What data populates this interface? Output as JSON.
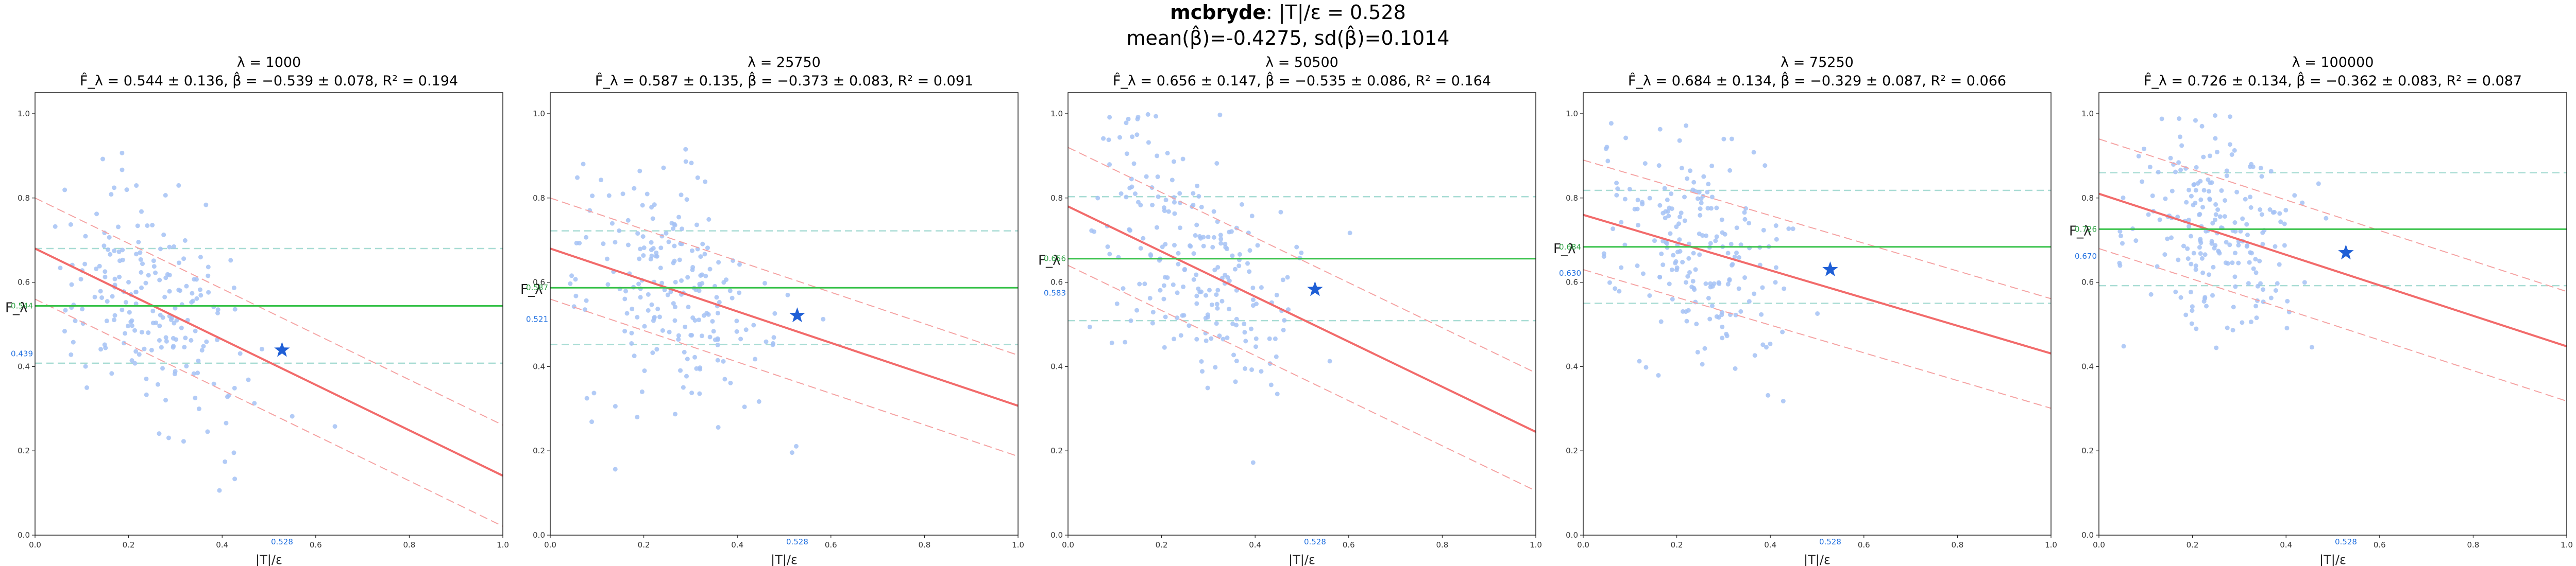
{
  "suptitle": {
    "name": "mcbryde",
    "rest": ": |T|/ε = 0.528",
    "line2": "mean(β̂)=-0.4275, sd(β̂)=0.1014"
  },
  "colors": {
    "points": "#a4c2f4",
    "fit_line": "#f26b6b",
    "band": "#f5a3a3",
    "hline": "#38c24a",
    "hband": "#a8dcd4",
    "star": "#1f5fd6",
    "x_annot": "#1f6fe0",
    "y_annot_green": "#2ea043",
    "y_annot_blue": "#1f6fe0"
  },
  "chart_data": [
    {
      "type": "scatter",
      "title_line1": "λ = 1000",
      "title_line2": "F̂_λ = 0.544 ± 0.136, β̂ = −0.539 ± 0.078, R² = 0.194",
      "xlabel": "|T|/ε",
      "ylabel": "F_λ",
      "xlim": [
        0,
        1
      ],
      "ylim": [
        0,
        1.05
      ],
      "xticks": [
        "0.0",
        "0.2",
        "0.4",
        "0.6",
        "0.8",
        "1.0"
      ],
      "yticks": [
        "0.0",
        "0.2",
        "0.4",
        "0.6",
        "0.8",
        "1.0"
      ],
      "x_annotation": "0.528",
      "y_annotations": [
        {
          "text": "0.544",
          "color": "green"
        },
        {
          "text": "0.439",
          "color": "blue"
        }
      ],
      "fit": {
        "intercept": 0.68,
        "slope": -0.539,
        "band": 0.12
      },
      "hline": 0.544,
      "hband": [
        0.408,
        0.68
      ],
      "star": {
        "x": 0.528,
        "y": 0.439
      },
      "cloud": {
        "cx": 0.25,
        "cy": 0.55,
        "sx": 0.11,
        "sy": 0.13,
        "n": 200,
        "seed": 11
      }
    },
    {
      "type": "scatter",
      "title_line1": "λ = 25750",
      "title_line2": "F̂_λ = 0.587 ± 0.135, β̂ = −0.373 ± 0.083, R² = 0.091",
      "xlabel": "|T|/ε",
      "ylabel": "F_λ",
      "xlim": [
        0,
        1
      ],
      "ylim": [
        0,
        1.05
      ],
      "xticks": [
        "0.0",
        "0.2",
        "0.4",
        "0.6",
        "0.8",
        "1.0"
      ],
      "yticks": [
        "0.0",
        "0.2",
        "0.4",
        "0.6",
        "0.8",
        "1.0"
      ],
      "x_annotation": "0.528",
      "y_annotations": [
        {
          "text": "0.587",
          "color": "green"
        },
        {
          "text": "0.521",
          "color": "blue"
        }
      ],
      "fit": {
        "intercept": 0.68,
        "slope": -0.373,
        "band": 0.12
      },
      "hline": 0.587,
      "hband": [
        0.452,
        0.722
      ],
      "star": {
        "x": 0.528,
        "y": 0.521
      },
      "cloud": {
        "cx": 0.27,
        "cy": 0.58,
        "sx": 0.1,
        "sy": 0.13,
        "n": 210,
        "seed": 23
      }
    },
    {
      "type": "scatter",
      "title_line1": "λ = 50500",
      "title_line2": "F̂_λ = 0.656 ± 0.147, β̂ = −0.535 ± 0.086, R² = 0.164",
      "xlabel": "|T|/ε",
      "ylabel": "F_λ",
      "xlim": [
        0,
        1
      ],
      "ylim": [
        0,
        1.05
      ],
      "xticks": [
        "0.0",
        "0.2",
        "0.4",
        "0.6",
        "0.8",
        "1.0"
      ],
      "yticks": [
        "0.0",
        "0.2",
        "0.4",
        "0.6",
        "0.8",
        "1.0"
      ],
      "x_annotation": "0.528",
      "y_annotations": [
        {
          "text": "0.656",
          "color": "green"
        },
        {
          "text": "0.583",
          "color": "blue"
        }
      ],
      "fit": {
        "intercept": 0.78,
        "slope": -0.535,
        "band": 0.14
      },
      "hline": 0.656,
      "hband": [
        0.509,
        0.803
      ],
      "star": {
        "x": 0.528,
        "y": 0.583
      },
      "cloud": {
        "cx": 0.27,
        "cy": 0.64,
        "sx": 0.11,
        "sy": 0.15,
        "n": 220,
        "seed": 37
      }
    },
    {
      "type": "scatter",
      "title_line1": "λ = 75250",
      "title_line2": "F̂_λ = 0.684 ± 0.134, β̂ = −0.329 ± 0.087, R² = 0.066",
      "xlabel": "|T|/ε",
      "ylabel": "F_λ",
      "xlim": [
        0,
        1
      ],
      "ylim": [
        0,
        1.05
      ],
      "xticks": [
        "0.0",
        "0.2",
        "0.4",
        "0.6",
        "0.8",
        "1.0"
      ],
      "yticks": [
        "0.0",
        "0.2",
        "0.4",
        "0.6",
        "0.8",
        "1.0"
      ],
      "x_annotation": "0.528",
      "y_annotations": [
        {
          "text": "0.684",
          "color": "green"
        },
        {
          "text": "0.630",
          "color": "blue"
        }
      ],
      "fit": {
        "intercept": 0.76,
        "slope": -0.329,
        "band": 0.13
      },
      "hline": 0.684,
      "hband": [
        0.55,
        0.818
      ],
      "star": {
        "x": 0.528,
        "y": 0.63
      },
      "cloud": {
        "cx": 0.25,
        "cy": 0.68,
        "sx": 0.1,
        "sy": 0.13,
        "n": 200,
        "seed": 53
      }
    },
    {
      "type": "scatter",
      "title_line1": "λ = 100000",
      "title_line2": "F̂_λ = 0.726 ± 0.134, β̂ = −0.362 ± 0.083, R² = 0.087",
      "xlabel": "|T|/ε",
      "ylabel": "F_λ",
      "xlim": [
        0,
        1
      ],
      "ylim": [
        0,
        1.05
      ],
      "xticks": [
        "0.0",
        "0.2",
        "0.4",
        "0.6",
        "0.8",
        "1.0"
      ],
      "yticks": [
        "0.0",
        "0.2",
        "0.4",
        "0.6",
        "0.8",
        "1.0"
      ],
      "x_annotation": "0.528",
      "y_annotations": [
        {
          "text": "0.726",
          "color": "green"
        },
        {
          "text": "0.670",
          "color": "blue"
        }
      ],
      "fit": {
        "intercept": 0.81,
        "slope": -0.362,
        "band": 0.13
      },
      "hline": 0.726,
      "hband": [
        0.592,
        0.86
      ],
      "star": {
        "x": 0.528,
        "y": 0.67
      },
      "cloud": {
        "cx": 0.25,
        "cy": 0.73,
        "sx": 0.1,
        "sy": 0.13,
        "n": 210,
        "seed": 71
      }
    }
  ]
}
